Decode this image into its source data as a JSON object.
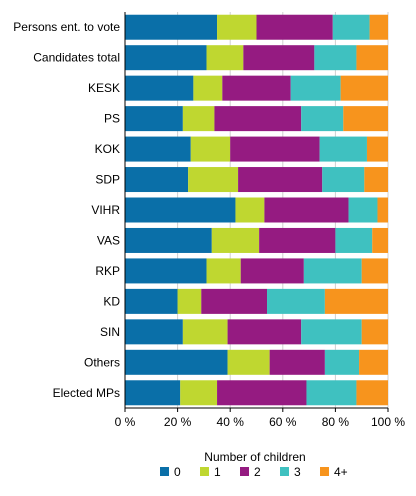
{
  "chart_data": {
    "type": "bar",
    "orientation": "horizontal",
    "stacked": true,
    "percent": true,
    "title": "",
    "xlabel": "",
    "ylabel": "",
    "xlim": [
      0,
      100
    ],
    "x_ticks": [
      0,
      20,
      40,
      60,
      80,
      100
    ],
    "x_tick_suffix": " %",
    "grid": true,
    "legend_title": "Number of children",
    "legend_position": "bottom",
    "categories": [
      "Persons ent. to vote",
      "Candidates total",
      "KESK",
      "PS",
      "KOK",
      "SDP",
      "VIHR",
      "VAS",
      "RKP",
      "KD",
      "SIN",
      "Others",
      "Elected MPs"
    ],
    "series": [
      {
        "name": "0",
        "color": "#0a6fa8",
        "values": [
          35,
          31,
          26,
          22,
          25,
          24,
          42,
          33,
          31,
          20,
          22,
          39,
          21
        ]
      },
      {
        "name": "1",
        "color": "#bfd730",
        "values": [
          15,
          14,
          11,
          12,
          15,
          19,
          11,
          18,
          13,
          9,
          17,
          16,
          14
        ]
      },
      {
        "name": "2",
        "color": "#951b81",
        "values": [
          29,
          27,
          26,
          33,
          34,
          32,
          32,
          29,
          24,
          25,
          28,
          21,
          34
        ]
      },
      {
        "name": "3",
        "color": "#3fc1c0",
        "values": [
          14,
          16,
          19,
          16,
          18,
          16,
          11,
          14,
          22,
          22,
          23,
          13,
          19
        ]
      },
      {
        "name": "4+",
        "color": "#f7941d",
        "values": [
          7,
          12,
          18,
          17,
          8,
          9,
          4,
          6,
          10,
          24,
          10,
          11,
          12
        ]
      }
    ]
  }
}
